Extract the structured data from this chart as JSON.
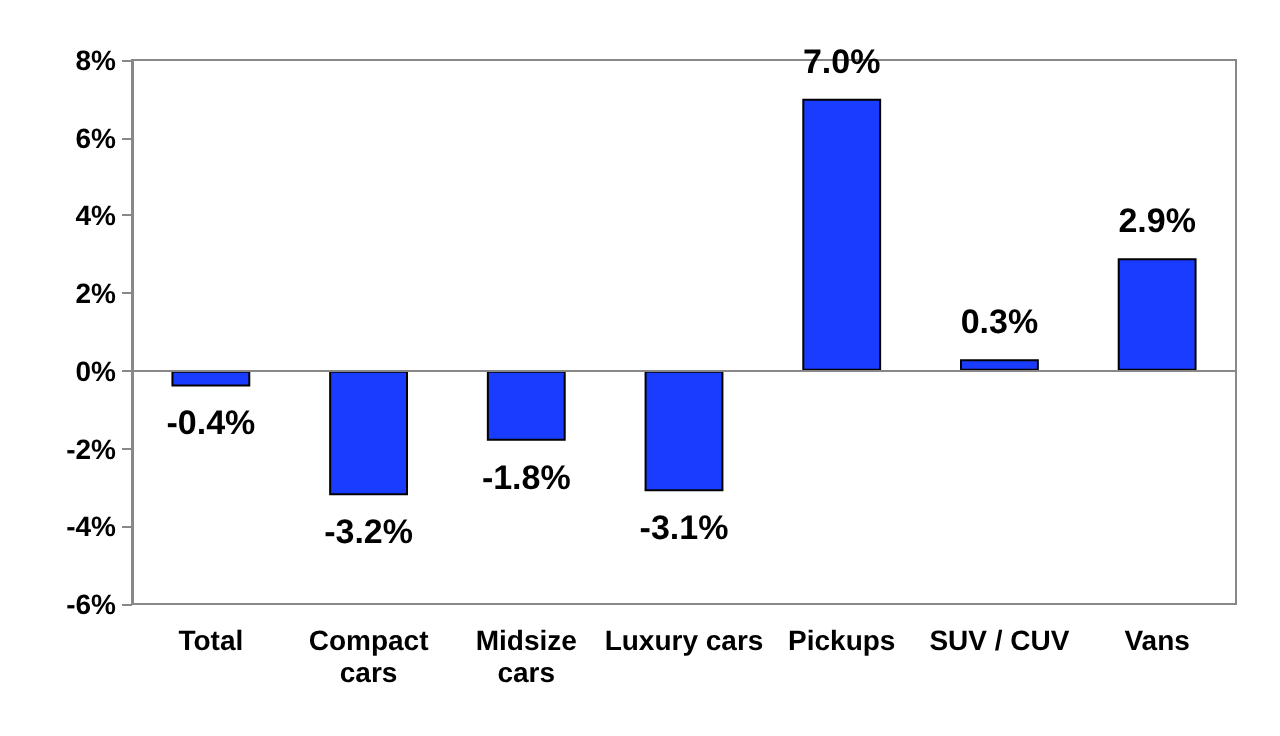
{
  "chart_data": {
    "type": "bar",
    "categories": [
      "Total",
      "Compact\ncars",
      "Midsize\ncars",
      "Luxury cars",
      "Pickups",
      "SUV / CUV",
      "Vans"
    ],
    "values": [
      -0.4,
      -3.2,
      -1.8,
      -3.1,
      7.0,
      0.3,
      2.9
    ],
    "value_labels": [
      "-0.4%",
      "-3.2%",
      "-1.8%",
      "-3.1%",
      "7.0%",
      "0.3%",
      "2.9%"
    ],
    "color": "#1a3cff",
    "ylim": [
      -6,
      8
    ],
    "yticks": [
      {
        "value": -6,
        "label": "-6%"
      },
      {
        "value": -4,
        "label": "-4%"
      },
      {
        "value": -2,
        "label": "-2%"
      },
      {
        "value": 0,
        "label": "0%"
      },
      {
        "value": 2,
        "label": "2%"
      },
      {
        "value": 4,
        "label": "4%"
      },
      {
        "value": 6,
        "label": "6%"
      },
      {
        "value": 8,
        "label": "8%"
      }
    ],
    "ref_lines": [
      {
        "axis": "y",
        "value": 0,
        "color": "#888888"
      }
    ]
  }
}
